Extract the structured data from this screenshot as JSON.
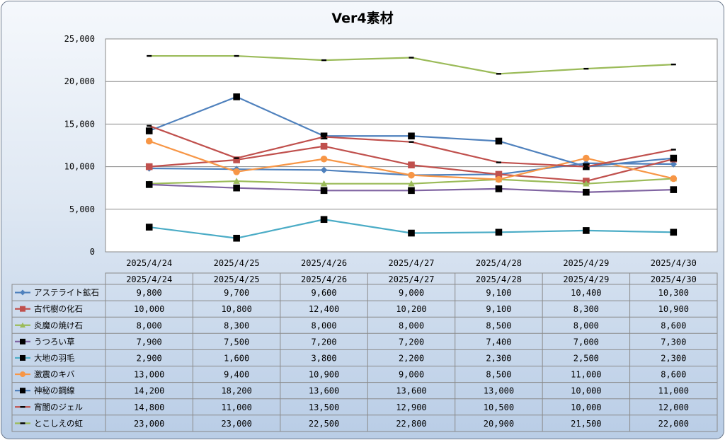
{
  "chart_data": {
    "type": "line",
    "title": "Ver4素材",
    "categories": [
      "2025/4/24",
      "2025/4/25",
      "2025/4/26",
      "2025/4/27",
      "2025/4/28",
      "2025/4/29",
      "2025/4/30"
    ],
    "ylim": [
      0,
      25000
    ],
    "yticks": [
      "0",
      "5,000",
      "10,000",
      "15,000",
      "20,000",
      "25,000"
    ],
    "grid": true,
    "legend": "data-table-bottom",
    "series": [
      {
        "name": "アステライト鉱石",
        "color": "#4f81bd",
        "marker": "diamond",
        "values": [
          9800,
          9700,
          9600,
          9000,
          9100,
          10400,
          10300
        ],
        "labels": [
          "9,800",
          "9,700",
          "9,600",
          "9,000",
          "9,100",
          "10,400",
          "10,300"
        ]
      },
      {
        "name": "古代樹の化石",
        "color": "#c0504d",
        "marker": "square",
        "values": [
          10000,
          10800,
          12400,
          10200,
          9100,
          8300,
          10900
        ],
        "labels": [
          "10,000",
          "10,800",
          "12,400",
          "10,200",
          "9,100",
          "8,300",
          "10,900"
        ]
      },
      {
        "name": "炎魔の焼け石",
        "color": "#9bbb59",
        "marker": "triangle",
        "values": [
          8000,
          8300,
          8000,
          8000,
          8500,
          8000,
          8600
        ],
        "labels": [
          "8,000",
          "8,300",
          "8,000",
          "8,000",
          "8,500",
          "8,000",
          "8,600"
        ]
      },
      {
        "name": "うつろい草",
        "color": "#8064a2",
        "marker": "blacksquare",
        "values": [
          7900,
          7500,
          7200,
          7200,
          7400,
          7000,
          7300
        ],
        "labels": [
          "7,900",
          "7,500",
          "7,200",
          "7,200",
          "7,400",
          "7,000",
          "7,300"
        ]
      },
      {
        "name": "大地の羽毛",
        "color": "#4bacc6",
        "marker": "blacksquare",
        "values": [
          2900,
          1600,
          3800,
          2200,
          2300,
          2500,
          2300
        ],
        "labels": [
          "2,900",
          "1,600",
          "3,800",
          "2,200",
          "2,300",
          "2,500",
          "2,300"
        ]
      },
      {
        "name": "激震のキバ",
        "color": "#f79646",
        "marker": "circle",
        "values": [
          13000,
          9400,
          10900,
          9000,
          8500,
          11000,
          8600
        ],
        "labels": [
          "13,000",
          "9,400",
          "10,900",
          "9,000",
          "8,500",
          "11,000",
          "8,600"
        ]
      },
      {
        "name": "神秘の鋼線",
        "color": "#4f81bd",
        "marker": "blacksquare",
        "values": [
          14200,
          18200,
          13600,
          13600,
          13000,
          10000,
          11000
        ],
        "labels": [
          "14,200",
          "18,200",
          "13,600",
          "13,600",
          "13,000",
          "10,000",
          "11,000"
        ]
      },
      {
        "name": "宵闇のジェル",
        "color": "#c0504d",
        "marker": "dash",
        "values": [
          14800,
          11000,
          13500,
          12900,
          10500,
          10000,
          12000
        ],
        "labels": [
          "14,800",
          "11,000",
          "13,500",
          "12,900",
          "10,500",
          "10,000",
          "12,000"
        ]
      },
      {
        "name": "とこしえの虹",
        "color": "#9bbb59",
        "marker": "dash",
        "values": [
          23000,
          23000,
          22500,
          22800,
          20900,
          21500,
          22000
        ],
        "labels": [
          "23,000",
          "23,000",
          "22,500",
          "22,800",
          "20,900",
          "21,500",
          "22,000"
        ]
      }
    ]
  }
}
